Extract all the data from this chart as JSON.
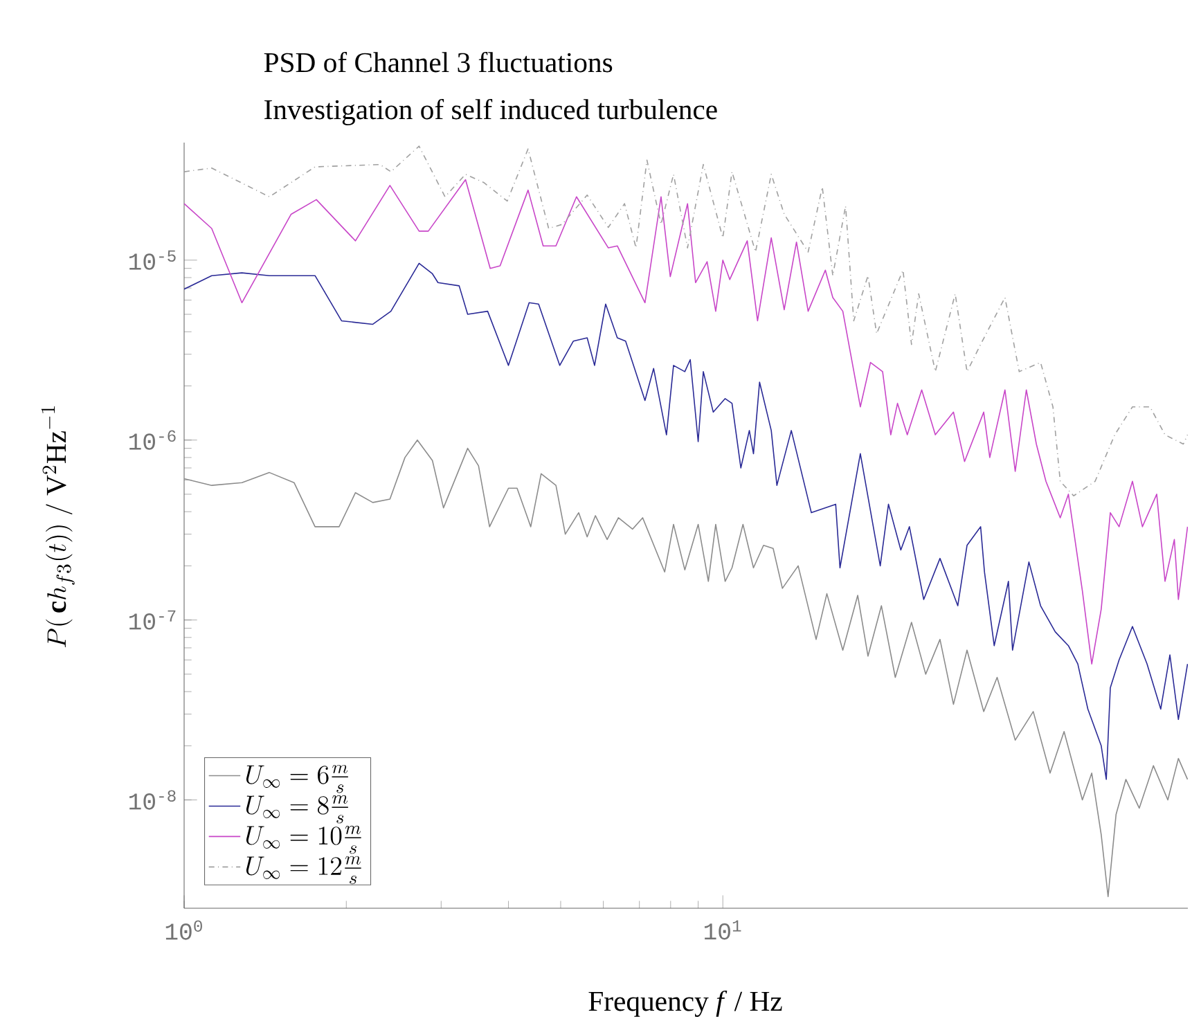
{
  "chart_data": {
    "type": "line",
    "title": "PSD of Channel 3 fluctuations",
    "subtitle": "Investigation of self induced turbulence",
    "xlabel": "Frequency *f* / Hz",
    "ylabel": "P(\\,\\mathbf{c}h_{f3}(t))\\ /\\ \\mathrm{V}^2\\mathrm{Hz}^{-1}",
    "log": "xy",
    "legend": "bottom left",
    "xlim": [
      1,
      73
    ],
    "ylim": [
      2.5e-09,
      4.5e-05
    ],
    "xticks": [
      {
        "value": 1,
        "label": "10$^{0}$"
      },
      {
        "value": 10,
        "label": "10$^{1}$"
      }
    ],
    "yticks": [
      {
        "value": 1e-08,
        "label": "10$^{-8}$"
      },
      {
        "value": 1e-07,
        "label": "10$^{-7}$"
      },
      {
        "value": 1e-06,
        "label": "10$^{-6}$"
      },
      {
        "value": 1e-05,
        "label": "10$^{-5}$"
      }
    ],
    "series": [
      {
        "name": "U_\\infty = 6\\frac{m}{s}",
        "color": "#8c8c8c",
        "line_style": "solid",
        "x": [
          1.0,
          1.125,
          1.28,
          1.44,
          1.6,
          1.75,
          1.94,
          2.08,
          2.24,
          2.41,
          2.57,
          2.71,
          2.89,
          3.03,
          3.36,
          3.52,
          3.69,
          4.0,
          4.15,
          4.4,
          4.6,
          4.9,
          5.1,
          5.4,
          5.6,
          5.8,
          6.1,
          6.4,
          6.8,
          7.1,
          7.8,
          8.1,
          8.5,
          9.0,
          9.4,
          9.7,
          10.1,
          10.4,
          10.9,
          11.4,
          11.9,
          12.4,
          12.9,
          13.8,
          14.9,
          15.6,
          16.7,
          17.8,
          18.6,
          19.7,
          20.9,
          22.4,
          23.8,
          25.3,
          26.8,
          28.4,
          30.5,
          32.3,
          34.9,
          37.7,
          40.5,
          43.0,
          46.5,
          48.4,
          50.4,
          51.9,
          53.7,
          56.0,
          59.3,
          63.0,
          67.0,
          70.1,
          72.9
        ],
        "values": [
          6.1e-07,
          5.6e-07,
          5.8e-07,
          6.6e-07,
          5.8e-07,
          3.3e-07,
          3.3e-07,
          5.1e-07,
          4.5e-07,
          4.7e-07,
          8e-07,
          1e-06,
          7.7e-07,
          4.2e-07,
          9e-07,
          7.2e-07,
          3.3e-07,
          5.4e-07,
          5.4e-07,
          3.3e-07,
          6.5e-07,
          5.6e-07,
          3e-07,
          3.95e-07,
          2.9e-07,
          3.8e-07,
          2.8e-07,
          3.7e-07,
          3.2e-07,
          3.7e-07,
          1.85e-07,
          3.4e-07,
          1.9e-07,
          3.4e-07,
          1.64e-07,
          3.4e-07,
          1.64e-07,
          1.95e-07,
          3.4e-07,
          1.95e-07,
          2.6e-07,
          2.5e-07,
          1.5e-07,
          2e-07,
          7.8e-08,
          1.4e-07,
          6.8e-08,
          1.37e-07,
          6.3e-08,
          1.2e-07,
          4.8e-08,
          9.7e-08,
          5e-08,
          7.8e-08,
          3.4e-08,
          6.8e-08,
          3.1e-08,
          4.8e-08,
          2.15e-08,
          3.1e-08,
          1.41e-08,
          2.4e-08,
          1e-08,
          1.41e-08,
          6.4e-09,
          2.9e-09,
          8.3e-09,
          1.3e-08,
          9e-09,
          1.55e-08,
          1e-08,
          1.7e-08,
          1.3e-08
        ]
      },
      {
        "name": "U_\\infty = 8\\frac{m}{s}",
        "color": "#2a2a96",
        "line_style": "solid",
        "x": [
          1.0,
          1.125,
          1.28,
          1.44,
          1.75,
          1.96,
          2.24,
          2.42,
          2.73,
          2.89,
          2.96,
          3.24,
          3.36,
          3.66,
          4.0,
          4.37,
          4.55,
          4.98,
          5.28,
          5.6,
          5.78,
          6.06,
          6.37,
          6.6,
          7.17,
          7.44,
          7.86,
          8.1,
          8.5,
          8.7,
          9.0,
          9.2,
          9.6,
          10.1,
          10.4,
          10.8,
          11.2,
          11.4,
          11.7,
          12.3,
          12.6,
          13.4,
          14.6,
          16.2,
          16.5,
          18.0,
          19.6,
          20.3,
          21.4,
          22.2,
          23.6,
          25.3,
          27.3,
          28.4,
          30.1,
          30.6,
          31.9,
          33.9,
          34.5,
          37.0,
          38.9,
          41.4,
          43.8,
          45.6,
          47.6,
          50.4,
          51.5,
          52.4,
          54.4,
          57.6,
          61.3,
          65.0,
          67.6,
          70.1,
          72.9
        ],
        "values": [
          6.9e-06,
          8.2e-06,
          8.5e-06,
          8.2e-06,
          8.2e-06,
          4.6e-06,
          4.4e-06,
          5.2e-06,
          9.6e-06,
          8.4e-06,
          7.5e-06,
          7.2e-06,
          5e-06,
          5.2e-06,
          2.6e-06,
          5.8e-06,
          5.7e-06,
          2.6e-06,
          3.55e-06,
          3.7e-06,
          2.6e-06,
          5.7e-06,
          3.7e-06,
          3.55e-06,
          1.66e-06,
          2.5e-06,
          1.07e-06,
          2.6e-06,
          2.4e-06,
          2.8e-06,
          9.8e-07,
          2.4e-06,
          1.43e-06,
          1.7e-06,
          1.6e-06,
          7e-07,
          1.13e-06,
          8.4e-07,
          2.1e-06,
          1.13e-06,
          5.6e-07,
          1.13e-06,
          3.95e-07,
          4.4e-07,
          1.95e-07,
          8.4e-07,
          2e-07,
          4.4e-07,
          2.45e-07,
          3.3e-07,
          1.3e-07,
          2.2e-07,
          1.2e-07,
          2.6e-07,
          3.3e-07,
          1.85e-07,
          7.2e-08,
          1.64e-07,
          6.8e-08,
          2.1e-07,
          1.2e-07,
          8.6e-08,
          7.2e-08,
          5.7e-08,
          3.2e-08,
          2e-08,
          1.3e-08,
          4.2e-08,
          6e-08,
          9.2e-08,
          5.7e-08,
          3.2e-08,
          6.4e-08,
          2.8e-08,
          5.7e-08
        ]
      },
      {
        "name": "U_\\infty = 10\\frac{m}{s}",
        "color": "#c846c8",
        "line_style": "solid",
        "x": [
          1.0,
          1.125,
          1.28,
          1.58,
          1.76,
          2.08,
          2.41,
          2.73,
          2.84,
          3.33,
          3.7,
          3.86,
          4.35,
          4.64,
          4.9,
          5.35,
          6.13,
          6.37,
          7.17,
          7.68,
          7.99,
          8.6,
          8.9,
          9.35,
          9.7,
          10.0,
          10.3,
          11.1,
          11.6,
          12.3,
          13.0,
          13.7,
          14.4,
          15.5,
          16.0,
          16.7,
          18.0,
          18.8,
          19.8,
          20.5,
          21.1,
          22.0,
          23.4,
          24.8,
          26.8,
          28.1,
          30.5,
          31.3,
          33.4,
          34.9,
          36.6,
          38.2,
          39.8,
          42.3,
          43.8,
          46.5,
          48.4,
          50.4,
          52.4,
          54.4,
          57.6,
          60.1,
          63.9,
          66.2,
          68.9,
          70.1,
          72.9
        ],
        "values": [
          2.06e-05,
          1.5e-05,
          5.8e-06,
          1.8e-05,
          2.17e-05,
          1.28e-05,
          2.6e-05,
          1.45e-05,
          1.45e-05,
          2.8e-05,
          9e-06,
          9.3e-06,
          2.45e-05,
          1.2e-05,
          1.2e-05,
          2.25e-05,
          1.17e-05,
          1.2e-05,
          5.8e-06,
          2.25e-05,
          8.1e-06,
          2.06e-05,
          7.5e-06,
          9.8e-06,
          5.2e-06,
          1e-05,
          7.8e-06,
          1.28e-05,
          4.6e-06,
          1.33e-05,
          5.3e-06,
          1.26e-05,
          5.2e-06,
          8.8e-06,
          6.2e-06,
          5.2e-06,
          1.53e-06,
          2.7e-06,
          2.4e-06,
          1.07e-06,
          1.6e-06,
          1.07e-06,
          1.9e-06,
          1.07e-06,
          1.43e-06,
          7.6e-07,
          1.43e-06,
          8e-07,
          1.9e-06,
          6.7e-07,
          1.9e-06,
          9.5e-07,
          5.9e-07,
          3.7e-07,
          5e-07,
          1.45e-07,
          5.7e-08,
          1.15e-07,
          3.95e-07,
          3.3e-07,
          5.9e-07,
          3.3e-07,
          5e-07,
          1.64e-07,
          2.8e-07,
          1.3e-07,
          3.3e-07
        ]
      },
      {
        "name": "U_\\infty = 12\\frac{m}{s}",
        "color": "#a0a0a0",
        "line_style": "dashdot",
        "x": [
          1.0,
          1.125,
          1.44,
          1.75,
          2.31,
          2.42,
          2.73,
          3.05,
          3.33,
          3.6,
          3.98,
          4.35,
          4.75,
          5.03,
          5.6,
          6.13,
          6.57,
          6.9,
          7.23,
          7.68,
          8.1,
          8.6,
          9.2,
          10.0,
          10.4,
          11.5,
          12.3,
          13.0,
          14.4,
          15.3,
          16.0,
          16.9,
          17.5,
          18.6,
          19.3,
          21.6,
          22.4,
          23.1,
          24.8,
          27.0,
          28.4,
          30.1,
          33.4,
          35.5,
          38.9,
          41.0,
          42.3,
          44.8,
          49.1,
          53.4,
          57.6,
          62.1,
          66.2,
          71.6,
          72.9
        ],
        "values": [
          3.1e-05,
          3.25e-05,
          2.25e-05,
          3.3e-05,
          3.4e-05,
          3.1e-05,
          4.3e-05,
          2.25e-05,
          3e-05,
          2.7e-05,
          2.13e-05,
          4.15e-05,
          1.5e-05,
          1.58e-05,
          2.3e-05,
          1.52e-05,
          2.06e-05,
          1.17e-05,
          3.6e-05,
          1.58e-05,
          3e-05,
          1.17e-05,
          3.4e-05,
          1.33e-05,
          3.1e-05,
          1.11e-05,
          3e-05,
          1.8e-05,
          1.11e-05,
          2.55e-05,
          8.2e-06,
          2e-05,
          4.6e-06,
          8.2e-06,
          3.9e-06,
          8.8e-06,
          3.4e-06,
          6.5e-06,
          2.4e-06,
          6.5e-06,
          2.4e-06,
          3.4e-06,
          6.2e-06,
          2.4e-06,
          2.7e-06,
          1.53e-06,
          5.9e-07,
          4.9e-07,
          5.9e-07,
          1.07e-06,
          1.53e-06,
          1.53e-06,
          1.07e-06,
          9.5e-07,
          1.07e-06
        ]
      }
    ]
  }
}
